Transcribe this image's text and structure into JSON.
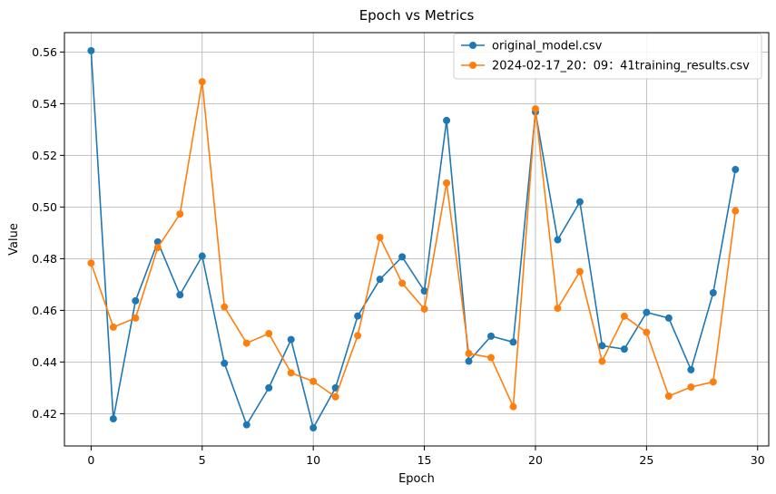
{
  "chart_data": {
    "type": "line",
    "title": "Epoch vs Metrics",
    "xlabel": "Epoch",
    "ylabel": "Value",
    "xlim": [
      -1.2,
      30.5
    ],
    "ylim": [
      0.4075,
      0.5675
    ],
    "xticks": [
      0,
      5,
      10,
      15,
      20,
      25,
      30
    ],
    "yticks": [
      0.42,
      0.44,
      0.46,
      0.48,
      0.5,
      0.52,
      0.54,
      0.56
    ],
    "grid": true,
    "legend_position": "top-right",
    "x": [
      0,
      1,
      2,
      3,
      4,
      5,
      6,
      7,
      8,
      9,
      10,
      11,
      12,
      13,
      14,
      15,
      16,
      17,
      18,
      19,
      20,
      21,
      22,
      23,
      24,
      25,
      26,
      27,
      28,
      29
    ],
    "series": [
      {
        "name": "original_model.csv",
        "color": "#1f77b4",
        "values": [
          0.5605,
          0.418,
          0.4637,
          0.4865,
          0.466,
          0.481,
          0.4395,
          0.4157,
          0.43,
          0.4487,
          0.4145,
          0.43,
          0.4578,
          0.472,
          0.4807,
          0.4675,
          0.5335,
          0.4403,
          0.45,
          0.4477,
          0.5368,
          0.4873,
          0.502,
          0.4463,
          0.445,
          0.4592,
          0.457,
          0.437,
          0.4668,
          0.5145
        ]
      },
      {
        "name": "2024-02-17_20：09：41training_results.csv",
        "color": "#ff7f0e",
        "values": [
          0.4783,
          0.4535,
          0.457,
          0.4843,
          0.4973,
          0.5485,
          0.4613,
          0.4473,
          0.451,
          0.4358,
          0.4325,
          0.4265,
          0.4502,
          0.4882,
          0.4705,
          0.4605,
          0.5093,
          0.4433,
          0.4417,
          0.4227,
          0.538,
          0.4608,
          0.475,
          0.4403,
          0.4577,
          0.4515,
          0.4268,
          0.4303,
          0.4323,
          0.4985
        ]
      }
    ]
  }
}
